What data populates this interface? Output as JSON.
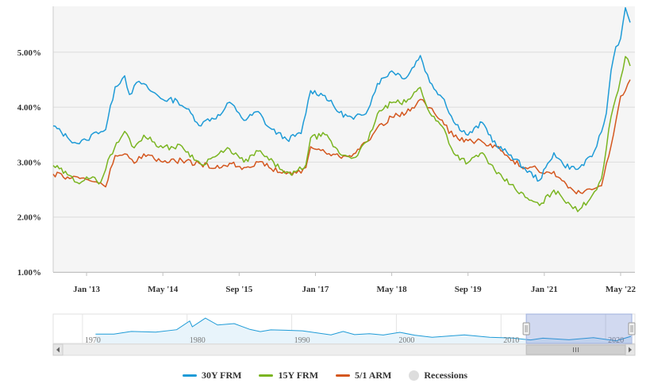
{
  "chart_data": {
    "type": "line",
    "title": "",
    "xlabel": "",
    "ylabel": "",
    "ylim": [
      1.0,
      6.0
    ],
    "y_ticks": [
      "1.00%",
      "2.00%",
      "3.00%",
      "4.00%",
      "5.00%"
    ],
    "x_ticks": [
      "Jan '13",
      "May '14",
      "Sep '15",
      "Jan '17",
      "May '18",
      "Sep '19",
      "Jan '21",
      "May '22"
    ],
    "grid": "horizontal",
    "legend_position": "bottom-center",
    "series": [
      {
        "name": "30Y FRM",
        "color": "#1e9bd7",
        "points": [
          [
            "2012-06",
            3.66
          ],
          [
            "2012-09",
            3.45
          ],
          [
            "2012-11",
            3.34
          ],
          [
            "2013-01",
            3.4
          ],
          [
            "2013-03",
            3.55
          ],
          [
            "2013-05",
            3.59
          ],
          [
            "2013-07",
            4.37
          ],
          [
            "2013-09",
            4.57
          ],
          [
            "2013-10",
            4.23
          ],
          [
            "2013-12",
            4.47
          ],
          [
            "2014-02",
            4.33
          ],
          [
            "2014-05",
            4.14
          ],
          [
            "2014-08",
            4.12
          ],
          [
            "2014-10",
            3.97
          ],
          [
            "2015-01",
            3.66
          ],
          [
            "2015-02",
            3.76
          ],
          [
            "2015-05",
            3.85
          ],
          [
            "2015-07",
            4.09
          ],
          [
            "2015-09",
            3.89
          ],
          [
            "2015-10",
            3.76
          ],
          [
            "2016-01",
            3.92
          ],
          [
            "2016-03",
            3.65
          ],
          [
            "2016-07",
            3.41
          ],
          [
            "2016-10",
            3.52
          ],
          [
            "2016-12",
            4.3
          ],
          [
            "2017-03",
            4.21
          ],
          [
            "2017-06",
            3.9
          ],
          [
            "2017-09",
            3.78
          ],
          [
            "2017-12",
            3.95
          ],
          [
            "2018-02",
            4.43
          ],
          [
            "2018-05",
            4.66
          ],
          [
            "2018-08",
            4.53
          ],
          [
            "2018-11",
            4.94
          ],
          [
            "2019-01",
            4.45
          ],
          [
            "2019-04",
            4.14
          ],
          [
            "2019-06",
            3.73
          ],
          [
            "2019-09",
            3.49
          ],
          [
            "2019-12",
            3.72
          ],
          [
            "2020-03",
            3.29
          ],
          [
            "2020-06",
            3.13
          ],
          [
            "2020-09",
            2.87
          ],
          [
            "2020-12",
            2.67
          ],
          [
            "2021-03",
            3.17
          ],
          [
            "2021-05",
            2.95
          ],
          [
            "2021-08",
            2.87
          ],
          [
            "2021-11",
            3.1
          ],
          [
            "2022-01",
            3.55
          ],
          [
            "2022-02",
            3.89
          ],
          [
            "2022-03",
            4.67
          ],
          [
            "2022-04",
            5.1
          ],
          [
            "2022-05",
            5.25
          ],
          [
            "2022-06",
            5.81
          ],
          [
            "2022-07",
            5.54
          ]
        ]
      },
      {
        "name": "15Y FRM",
        "color": "#7ab521",
        "points": [
          [
            "2012-06",
            2.94
          ],
          [
            "2012-09",
            2.77
          ],
          [
            "2012-11",
            2.63
          ],
          [
            "2013-01",
            2.73
          ],
          [
            "2013-04",
            2.64
          ],
          [
            "2013-06",
            3.13
          ],
          [
            "2013-09",
            3.56
          ],
          [
            "2013-11",
            3.26
          ],
          [
            "2014-01",
            3.49
          ],
          [
            "2014-05",
            3.26
          ],
          [
            "2014-09",
            3.29
          ],
          [
            "2014-12",
            3.03
          ],
          [
            "2015-01",
            2.96
          ],
          [
            "2015-03",
            3.06
          ],
          [
            "2015-07",
            3.24
          ],
          [
            "2015-10",
            3.0
          ],
          [
            "2016-01",
            3.2
          ],
          [
            "2016-06",
            2.86
          ],
          [
            "2016-08",
            2.76
          ],
          [
            "2016-11",
            2.95
          ],
          [
            "2016-12",
            3.44
          ],
          [
            "2017-03",
            3.5
          ],
          [
            "2017-06",
            3.16
          ],
          [
            "2017-09",
            3.08
          ],
          [
            "2017-12",
            3.38
          ],
          [
            "2018-02",
            3.88
          ],
          [
            "2018-05",
            4.08
          ],
          [
            "2018-08",
            4.09
          ],
          [
            "2018-11",
            4.36
          ],
          [
            "2019-01",
            3.89
          ],
          [
            "2019-04",
            3.6
          ],
          [
            "2019-06",
            3.16
          ],
          [
            "2019-09",
            2.99
          ],
          [
            "2019-12",
            3.17
          ],
          [
            "2020-03",
            2.79
          ],
          [
            "2020-06",
            2.59
          ],
          [
            "2020-09",
            2.36
          ],
          [
            "2020-12",
            2.21
          ],
          [
            "2021-03",
            2.49
          ],
          [
            "2021-06",
            2.27
          ],
          [
            "2021-08",
            2.1
          ],
          [
            "2021-11",
            2.39
          ],
          [
            "2022-01",
            2.7
          ],
          [
            "2022-03",
            3.83
          ],
          [
            "2022-05",
            4.52
          ],
          [
            "2022-06",
            4.92
          ],
          [
            "2022-07",
            4.75
          ]
        ]
      },
      {
        "name": "5/1 ARM",
        "color": "#d4571f",
        "points": [
          [
            "2012-06",
            2.78
          ],
          [
            "2012-09",
            2.73
          ],
          [
            "2012-12",
            2.71
          ],
          [
            "2013-03",
            2.64
          ],
          [
            "2013-05",
            2.55
          ],
          [
            "2013-07",
            3.12
          ],
          [
            "2013-09",
            3.15
          ],
          [
            "2013-11",
            2.98
          ],
          [
            "2014-01",
            3.15
          ],
          [
            "2014-05",
            3.0
          ],
          [
            "2014-09",
            3.03
          ],
          [
            "2015-01",
            2.96
          ],
          [
            "2015-04",
            2.89
          ],
          [
            "2015-07",
            2.98
          ],
          [
            "2015-10",
            2.9
          ],
          [
            "2016-01",
            3.0
          ],
          [
            "2016-06",
            2.8
          ],
          [
            "2016-09",
            2.8
          ],
          [
            "2016-11",
            2.9
          ],
          [
            "2016-12",
            3.28
          ],
          [
            "2017-03",
            3.18
          ],
          [
            "2017-06",
            3.1
          ],
          [
            "2017-09",
            3.15
          ],
          [
            "2017-12",
            3.38
          ],
          [
            "2018-02",
            3.63
          ],
          [
            "2018-05",
            3.82
          ],
          [
            "2018-08",
            3.89
          ],
          [
            "2018-11",
            4.14
          ],
          [
            "2019-01",
            3.99
          ],
          [
            "2019-04",
            3.68
          ],
          [
            "2019-06",
            3.46
          ],
          [
            "2019-09",
            3.39
          ],
          [
            "2019-12",
            3.37
          ],
          [
            "2020-03",
            3.28
          ],
          [
            "2020-06",
            3.03
          ],
          [
            "2020-09",
            2.9
          ],
          [
            "2020-11",
            2.93
          ],
          [
            "2021-01",
            2.79
          ],
          [
            "2021-03",
            2.83
          ],
          [
            "2021-06",
            2.53
          ],
          [
            "2021-09",
            2.43
          ],
          [
            "2021-11",
            2.5
          ],
          [
            "2022-01",
            2.57
          ],
          [
            "2022-03",
            3.3
          ],
          [
            "2022-05",
            4.2
          ],
          [
            "2022-06",
            4.3
          ],
          [
            "2022-07",
            4.5
          ]
        ]
      }
    ],
    "recessions_label": "Recessions"
  },
  "navigator": {
    "x_ticks": [
      "1970",
      "1980",
      "1990",
      "2000",
      "2010",
      "2020"
    ],
    "selected_range": [
      "2012-06",
      "2022-07"
    ],
    "series_name": "30Y FRM",
    "series_color": "#1e9bd7",
    "points": [
      [
        "1971-04",
        7.3
      ],
      [
        "1973-01",
        7.4
      ],
      [
        "1974-09",
        9.2
      ],
      [
        "1977-01",
        8.7
      ],
      [
        "1979-01",
        10.4
      ],
      [
        "1980-04",
        16.4
      ],
      [
        "1980-07",
        12.4
      ],
      [
        "1981-10",
        18.4
      ],
      [
        "1982-12",
        13.6
      ],
      [
        "1984-07",
        14.6
      ],
      [
        "1986-01",
        10.6
      ],
      [
        "1987-01",
        9.1
      ],
      [
        "1988-01",
        10.3
      ],
      [
        "1989-06",
        10.0
      ],
      [
        "1991-01",
        9.6
      ],
      [
        "1993-10",
        6.8
      ],
      [
        "1994-12",
        9.2
      ],
      [
        "1996-01",
        7.0
      ],
      [
        "1997-06",
        7.6
      ],
      [
        "1998-10",
        6.7
      ],
      [
        "2000-05",
        8.6
      ],
      [
        "2001-10",
        6.6
      ],
      [
        "2003-06",
        5.2
      ],
      [
        "2006-07",
        6.8
      ],
      [
        "2008-12",
        5.1
      ],
      [
        "2011-01",
        4.7
      ],
      [
        "2012-11",
        3.3
      ],
      [
        "2014-01",
        4.5
      ],
      [
        "2016-07",
        3.4
      ],
      [
        "2018-11",
        4.9
      ],
      [
        "2021-01",
        2.7
      ],
      [
        "2022-06",
        5.8
      ]
    ]
  },
  "legend": {
    "items": [
      "30Y FRM",
      "15Y FRM",
      "5/1 ARM",
      "Recessions"
    ],
    "recessions_color": "#dddddd"
  }
}
